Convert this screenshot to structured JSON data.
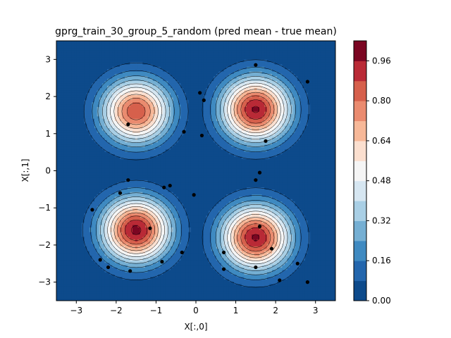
{
  "chart_data": {
    "type": "contourf",
    "title": "gprg_train_30_group_5_random (pred mean - true mean)",
    "xlabel": "X[:,0]",
    "ylabel": "X[:,1]",
    "xlim": [
      -3.5,
      3.5
    ],
    "ylim": [
      -3.5,
      3.5
    ],
    "xticks": [
      -3,
      -2,
      -1,
      0,
      1,
      2,
      3
    ],
    "yticks": [
      -3,
      -2,
      -1,
      0,
      1,
      2,
      3
    ],
    "xtick_labels": [
      "−3",
      "−2",
      "−1",
      "0",
      "1",
      "2",
      "3"
    ],
    "ytick_labels": [
      "−3",
      "−2",
      "−1",
      "0",
      "1",
      "2",
      "3"
    ],
    "colormap": "RdBu_r",
    "grid": false,
    "levels": [
      0.0,
      0.08,
      0.16,
      0.24,
      0.32,
      0.4,
      0.48,
      0.56,
      0.64,
      0.72,
      0.8,
      0.88,
      0.96,
      1.04
    ],
    "level_colors": [
      "#0d4a8b",
      "#2366ad",
      "#3f8ac1",
      "#75afd3",
      "#a9cfe5",
      "#d6e6f1",
      "#f5f5f5",
      "#fbdfcf",
      "#f7b898",
      "#ea8b6f",
      "#d6604c",
      "#b92a36",
      "#7b0622"
    ],
    "colorbar": {
      "ticks": [
        0.0,
        0.16,
        0.32,
        0.48,
        0.64,
        0.8,
        0.96
      ],
      "tick_labels": [
        "0.00",
        "0.16",
        "0.32",
        "0.48",
        "0.64",
        "0.80",
        "0.96"
      ]
    },
    "peaks": [
      {
        "x": -1.5,
        "y": 1.6,
        "amp": 0.86
      },
      {
        "x": 1.5,
        "y": 1.65,
        "amp": 0.97
      },
      {
        "x": -1.5,
        "y": -1.6,
        "amp": 0.98
      },
      {
        "x": 1.5,
        "y": -1.8,
        "amp": 0.97
      }
    ],
    "points": {
      "x": [
        1.5,
        2.8,
        0.1,
        0.2,
        -1.7,
        -0.3,
        0.15,
        1.75,
        -1.7,
        1.6,
        1.5,
        -0.65,
        -0.8,
        -0.05,
        -1.9,
        -2.6,
        -1.15,
        1.6,
        0.7,
        1.9,
        -0.35,
        -2.4,
        -0.85,
        2.55,
        -2.2,
        -1.65,
        0.7,
        1.5,
        2.1,
        2.8
      ],
      "y": [
        2.85,
        2.4,
        2.1,
        1.9,
        1.25,
        1.05,
        0.95,
        0.8,
        -0.25,
        -0.05,
        -0.25,
        -0.4,
        -0.45,
        -0.65,
        -0.6,
        -1.05,
        -1.55,
        -1.5,
        -2.2,
        -2.1,
        -2.2,
        -2.4,
        -2.45,
        -2.5,
        -2.6,
        -2.7,
        -2.65,
        -2.6,
        -2.95,
        -3.0
      ]
    }
  }
}
